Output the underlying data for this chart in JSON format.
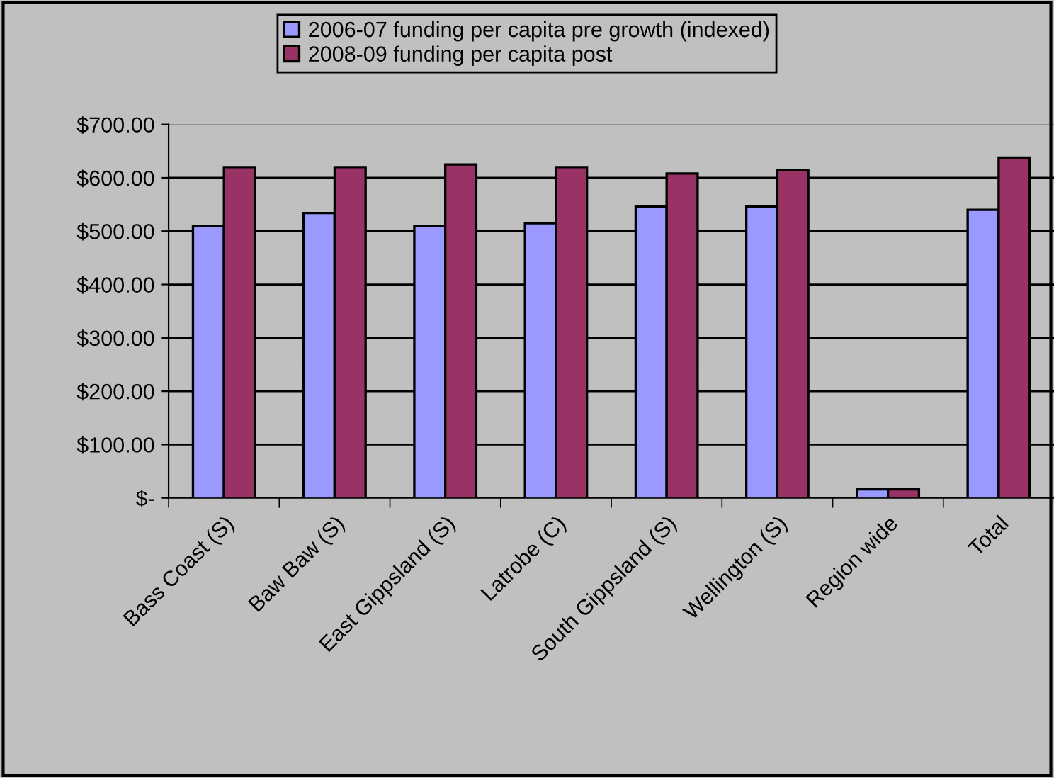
{
  "chart_data": {
    "type": "bar",
    "categories": [
      "Bass Coast (S)",
      "Baw Baw (S)",
      "East Gippsland (S)",
      "Latrobe (C)",
      "South Gippsland (S)",
      "Wellington (S)",
      "Region wide",
      "Total"
    ],
    "series": [
      {
        "name": "2006-07 funding per capita pre growth (indexed)",
        "color": "#9999ff",
        "values": [
          510,
          534,
          510,
          515,
          546,
          546,
          16,
          540
        ]
      },
      {
        "name": "2008-09 funding per capita post",
        "color": "#993366",
        "values": [
          620,
          620,
          625,
          620,
          608,
          614,
          16,
          638
        ]
      }
    ],
    "ylim": [
      0,
      700
    ],
    "yticks": [
      {
        "value": 0,
        "label": "$-"
      },
      {
        "value": 100,
        "label": "$100.00"
      },
      {
        "value": 200,
        "label": "$200.00"
      },
      {
        "value": 300,
        "label": "$300.00"
      },
      {
        "value": 400,
        "label": "$400.00"
      },
      {
        "value": 500,
        "label": "$500.00"
      },
      {
        "value": 600,
        "label": "$600.00"
      },
      {
        "value": 700,
        "label": "$700.00"
      }
    ],
    "grid": "y",
    "legend": "top"
  }
}
